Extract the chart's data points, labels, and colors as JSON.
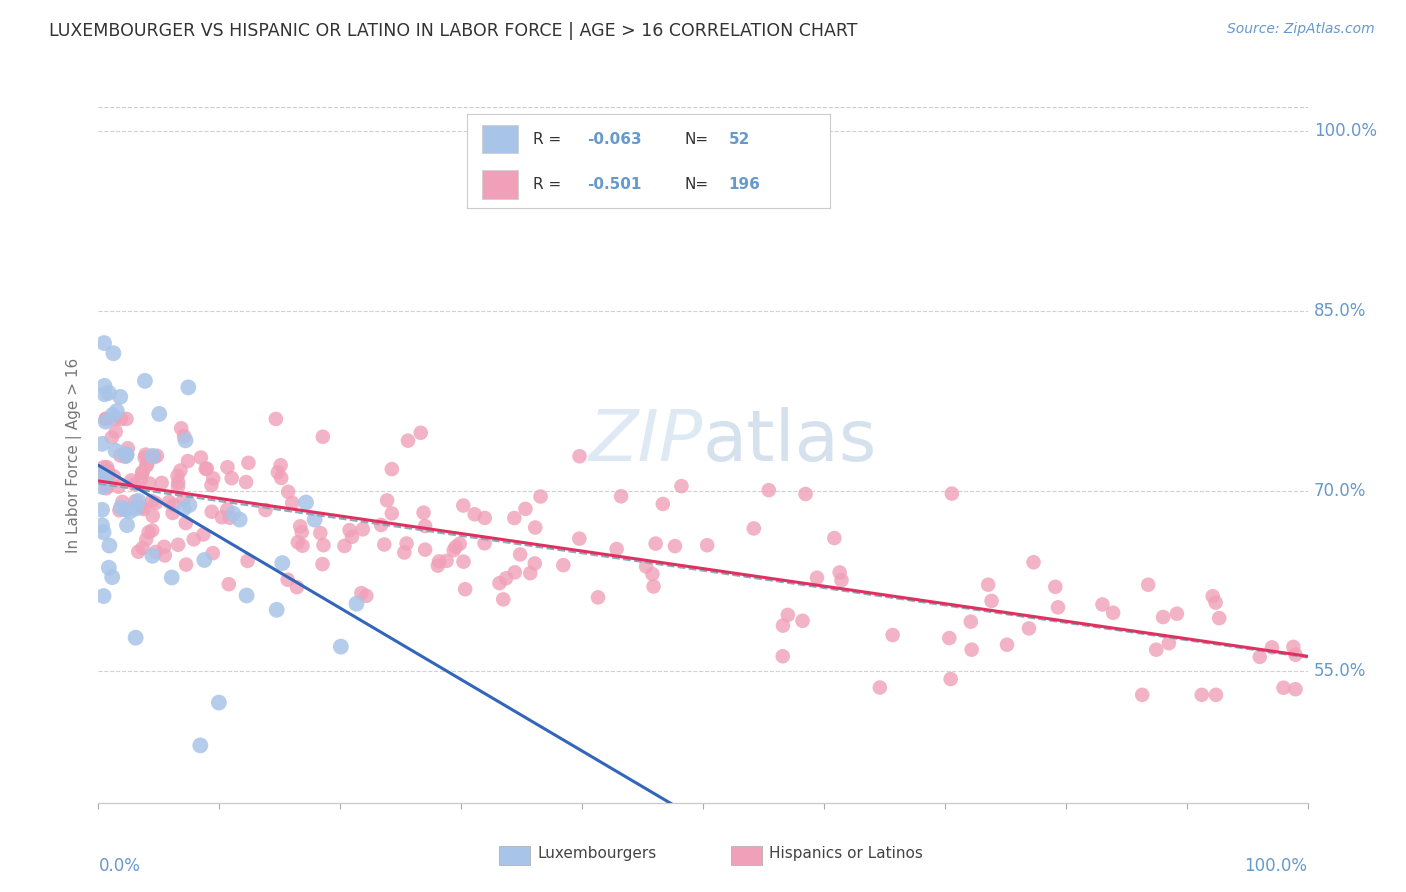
{
  "title": "LUXEMBOURGER VS HISPANIC OR LATINO IN LABOR FORCE | AGE > 16 CORRELATION CHART",
  "source": "Source: ZipAtlas.com",
  "ylabel": "In Labor Force | Age > 16",
  "watermark": "ZIPatlas",
  "legend_blue_R": "-0.063",
  "legend_blue_N": "52",
  "legend_pink_R": "-0.501",
  "legend_pink_N": "196",
  "blue_color": "#a8c4e8",
  "pink_color": "#f0a0b8",
  "blue_line_color": "#3366bb",
  "pink_line_color": "#e03060",
  "dashed_line_color": "#88aabb",
  "axis_label_color": "#6699cc",
  "title_color": "#333333",
  "background_color": "#ffffff",
  "grid_color": "#cccccc",
  "ylim_low": 0.44,
  "ylim_high": 1.02,
  "xlim_low": 0.0,
  "xlim_high": 1.0,
  "y_ticks": [
    0.55,
    0.7,
    0.85,
    1.0
  ],
  "y_tick_labels": [
    "55.0%",
    "70.0%",
    "85.0%",
    "100.0%"
  ],
  "blue_seed": 42,
  "pink_seed": 77
}
